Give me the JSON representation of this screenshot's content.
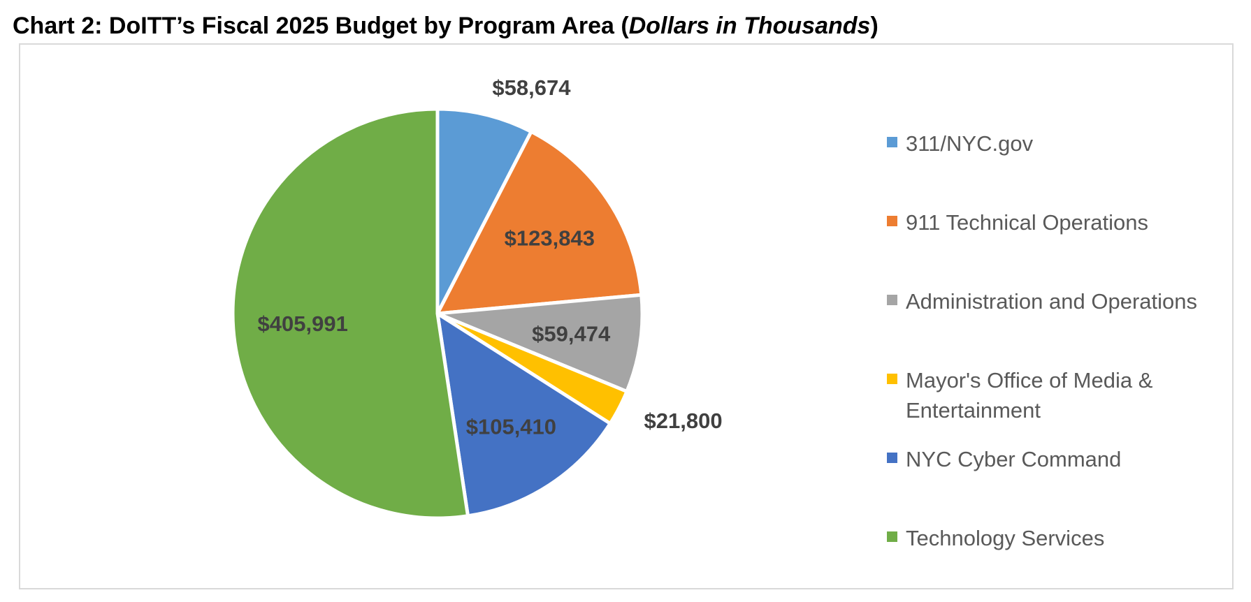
{
  "header": {
    "title_prefix": "Chart 2: DoITT’s Fiscal 2025 Budget by Program Area (",
    "title_italic": "Dollars in Thousands",
    "title_suffix": ")"
  },
  "chart_data": {
    "type": "pie",
    "title": "Chart 2: DoITT’s Fiscal 2025 Budget by Program Area (Dollars in Thousands)",
    "start_angle_deg": 0,
    "direction": "clockwise",
    "legend_position": "right",
    "slices": [
      {
        "name": "311/NYC.gov",
        "value": 58674,
        "label": "$58,674",
        "color": "#5b9bd5",
        "label_position": "outside"
      },
      {
        "name": "911 Technical Operations",
        "value": 123843,
        "label": "$123,843",
        "color": "#ed7d31",
        "label_position": "inside"
      },
      {
        "name": "Administration and Operations",
        "value": 59474,
        "label": "$59,474",
        "color": "#a5a5a5",
        "label_position": "inside"
      },
      {
        "name": "Mayor's Office of Media & Entertainment",
        "value": 21800,
        "label": "$21,800",
        "color": "#ffc000",
        "label_position": "outside"
      },
      {
        "name": "NYC Cyber Command",
        "value": 105410,
        "label": "$105,410",
        "color": "#4472c4",
        "label_position": "inside"
      },
      {
        "name": "Technology Services",
        "value": 405991,
        "label": "$405,991",
        "color": "#70ad47",
        "label_position": "inside"
      }
    ]
  }
}
